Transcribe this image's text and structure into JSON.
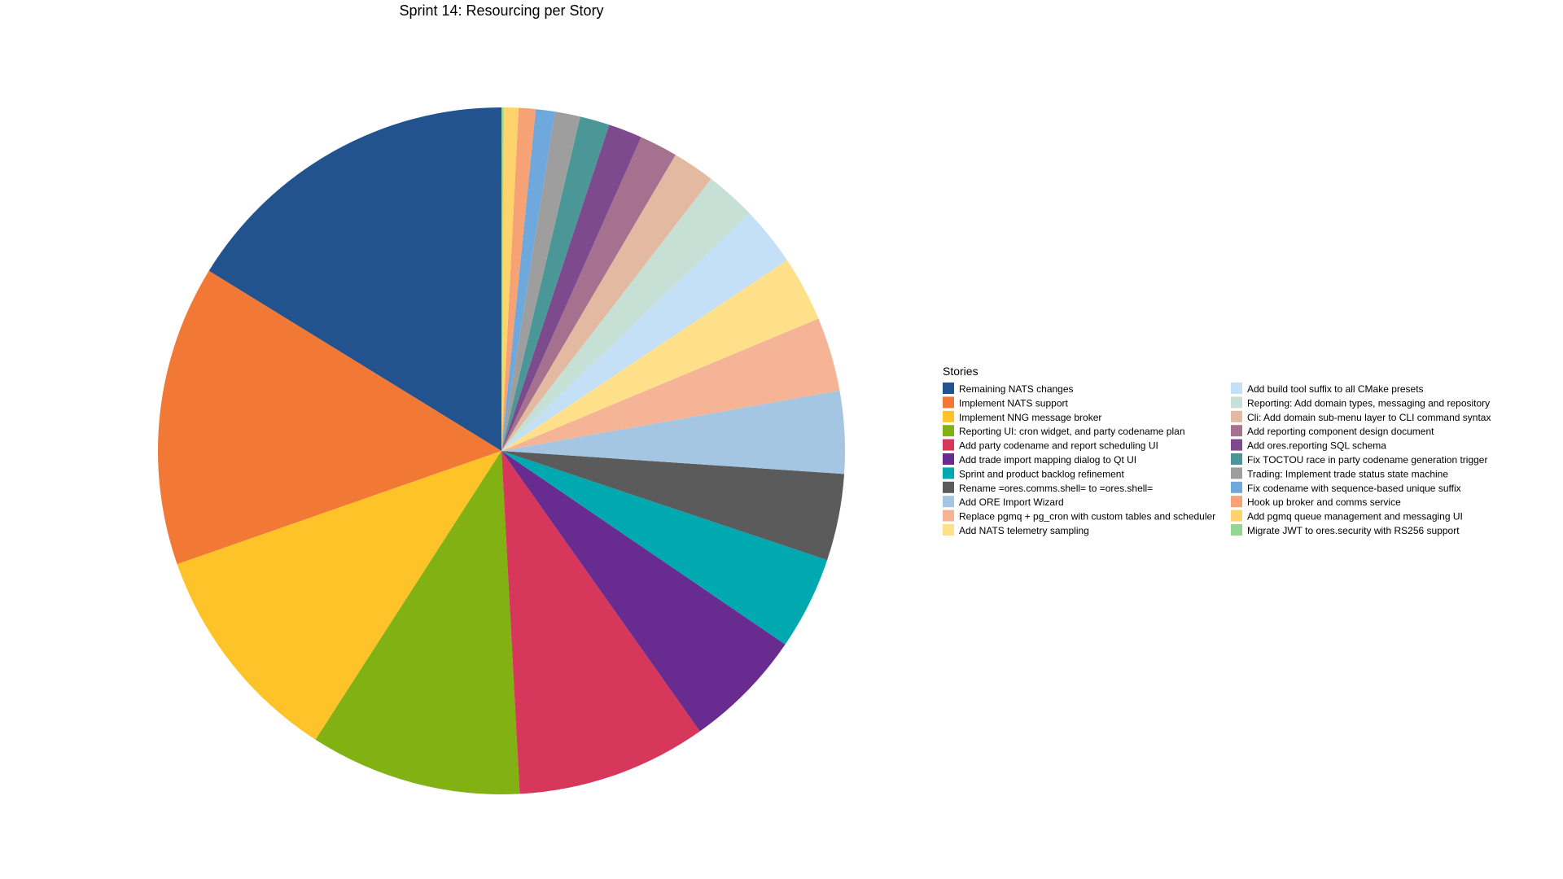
{
  "chart_data": {
    "type": "pie",
    "title": "Sprint 14: Resourcing per Story",
    "legend_title": "Stories",
    "legend_position": "right",
    "start_angle": "12 o'clock",
    "direction": "counter-clockwise",
    "slices": [
      {
        "label": "Remaining NATS changes",
        "value": 16.3,
        "color": "#22538e"
      },
      {
        "label": "Implement NATS support",
        "value": 14.2,
        "color": "#f27935"
      },
      {
        "label": "Implement NNG message broker",
        "value": 10.6,
        "color": "#fec328"
      },
      {
        "label": "Reporting UI: cron widget, and party codename plan",
        "value": 10.0,
        "color": "#82b114"
      },
      {
        "label": "Add party codename and report scheduling UI",
        "value": 9.0,
        "color": "#d8375c"
      },
      {
        "label": "Add trade import mapping dialog to Qt UI",
        "value": 5.7,
        "color": "#682c90"
      },
      {
        "label": "Sprint and product backlog refinement",
        "value": 4.4,
        "color": "#00a8b0"
      },
      {
        "label": "Rename =ores.comms.shell= to =ores.shell=",
        "value": 4.1,
        "color": "#5b5b5b"
      },
      {
        "label": "Add ORE Import Wizard",
        "value": 3.9,
        "color": "#a4c6e2"
      },
      {
        "label": "Replace pgmq + pg_cron with custom tables and scheduler",
        "value": 3.5,
        "color": "#f6b497"
      },
      {
        "label": "Add NATS telemetry sampling",
        "value": 3.1,
        "color": "#fee08b"
      },
      {
        "label": "Add build tool suffix to all CMake presets",
        "value": 2.8,
        "color": "#c3e0f7"
      },
      {
        "label": "Reporting: Add domain types, messaging and repository",
        "value": 2.4,
        "color": "#c6e0d5"
      },
      {
        "label": "Cli: Add domain sub-menu layer to CLI command syntax",
        "value": 2.0,
        "color": "#e4b9a1"
      },
      {
        "label": "Add reporting component design document",
        "value": 1.8,
        "color": "#a5718e"
      },
      {
        "label": "Add ores.reporting SQL schema",
        "value": 1.6,
        "color": "#7d4a8d"
      },
      {
        "label": "Fix TOCTOU race in party codename generation trigger",
        "value": 1.4,
        "color": "#4b9797"
      },
      {
        "label": "Trading: Implement trade status state machine",
        "value": 1.2,
        "color": "#9e9e9e"
      },
      {
        "label": "Fix codename with sequence-based unique suffix",
        "value": 0.9,
        "color": "#6fa8dc"
      },
      {
        "label": "Hook up broker and comms service",
        "value": 0.8,
        "color": "#f6a275"
      },
      {
        "label": "Add pgmq queue management and messaging UI",
        "value": 0.7,
        "color": "#fed36b"
      },
      {
        "label": "Migrate JWT to ores.security with RS256 support",
        "value": 0.1,
        "color": "#93d792"
      }
    ]
  }
}
